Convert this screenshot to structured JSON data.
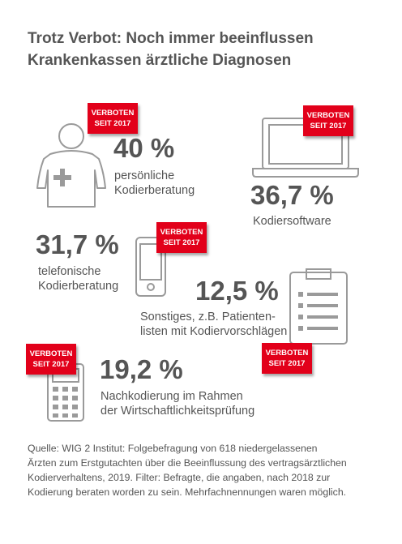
{
  "title": {
    "line1": "Trotz Verbot: Noch immer beeinflussen",
    "line2": "Krankenkassen ärztliche Diagnosen"
  },
  "badge": {
    "line1": "VERBOTEN",
    "line2": "SEIT 2017",
    "color": "#e2001a"
  },
  "items": [
    {
      "value": "40 %",
      "label_lines": [
        "persönliche",
        "Kodierberatung"
      ],
      "icon": "doctor-icon",
      "forbidden": true
    },
    {
      "value": "36,7 %",
      "label_lines": [
        "Kodiersoftware"
      ],
      "icon": "laptop-icon",
      "forbidden": true
    },
    {
      "value": "31,7 %",
      "label_lines": [
        "telefonische",
        "Kodierberatung"
      ],
      "icon": "smartphone-icon",
      "forbidden": true
    },
    {
      "value": "12,5 %",
      "label_lines": [
        "Sonstiges, z.B. Patienten-",
        "listen mit Kodiervorschlägen"
      ],
      "icon": "clipboard-icon",
      "forbidden": true
    },
    {
      "value": "19,2 %",
      "label_lines": [
        "Nachkodierung im Rahmen",
        "der Wirtschaftlichkeitsprüfung"
      ],
      "icon": "calculator-icon",
      "forbidden": true
    }
  ],
  "source": {
    "lines": [
      "Quelle: WIG 2 Institut: Folgebefragung von 618 niedergelassenen",
      "Ärzten zum Erstgutachten über die Beeinflussung des vertragsärztlichen",
      "Kodierverhaltens, 2019. Filter: Befragte, die angaben, nach 2018 zur",
      "Kodierung beraten worden zu sein. Mehrfachnennungen waren möglich."
    ]
  },
  "colors": {
    "text": "#555555",
    "icon_stroke": "#9a9a9a",
    "accent": "#e2001a"
  }
}
